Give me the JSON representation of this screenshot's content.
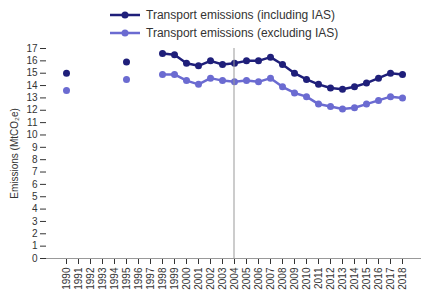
{
  "chart_data": {
    "type": "line",
    "y_label": "Emissions (MtCO₂e)",
    "categories": [
      "1990",
      "1991",
      "1992",
      "1993",
      "1994",
      "1995",
      "1996",
      "1997",
      "1998",
      "1999",
      "2000",
      "2001",
      "2002",
      "2003",
      "2004",
      "2005",
      "2006",
      "2007",
      "2008",
      "2009",
      "2010",
      "2011",
      "2012",
      "2013",
      "2014",
      "2015",
      "2016",
      "2017",
      "2018"
    ],
    "series": [
      {
        "name": "Transport emissions (including IAS)",
        "color": "#1f1f7a",
        "marker": "circle",
        "values": [
          15.0,
          null,
          null,
          null,
          null,
          15.9,
          null,
          null,
          16.6,
          16.5,
          15.8,
          15.6,
          16.0,
          15.7,
          15.8,
          16.0,
          16.0,
          16.3,
          15.7,
          15.0,
          14.5,
          14.1,
          13.8,
          13.7,
          13.9,
          14.2,
          14.6,
          15.0,
          14.9
        ]
      },
      {
        "name": "Transport emissions (excluding IAS)",
        "color": "#6b6bd1",
        "marker": "circle",
        "values": [
          13.6,
          null,
          null,
          null,
          null,
          14.5,
          null,
          null,
          14.9,
          14.9,
          14.4,
          14.1,
          14.6,
          14.4,
          14.3,
          14.4,
          14.3,
          14.6,
          13.9,
          13.4,
          13.1,
          12.5,
          12.3,
          12.1,
          12.2,
          12.5,
          12.8,
          13.1,
          13.0
        ]
      }
    ],
    "ylim": [
      0,
      17
    ],
    "yticks": [
      0,
      1,
      2,
      3,
      4,
      5,
      6,
      7,
      8,
      9,
      10,
      11,
      12,
      13,
      14,
      15,
      16,
      17
    ],
    "grid": false,
    "legend": "top"
  }
}
